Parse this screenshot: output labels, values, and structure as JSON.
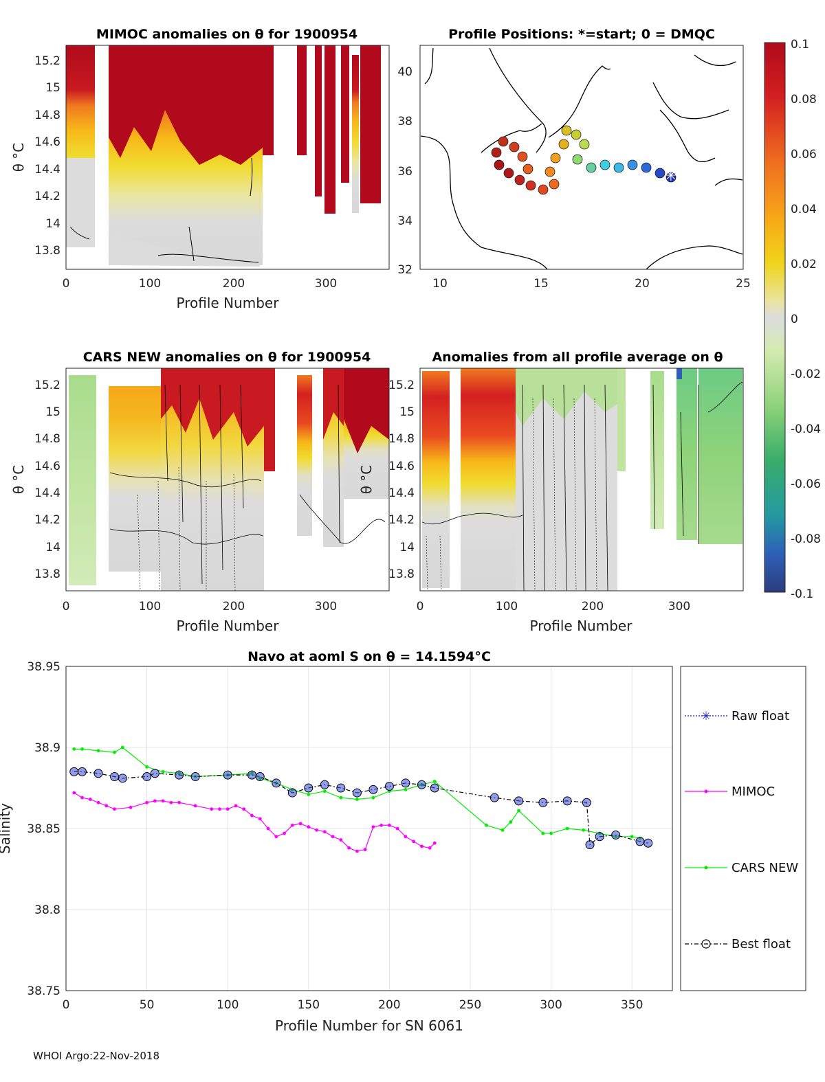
{
  "footer": "WHOI Argo:22-Nov-2018",
  "panels": {
    "mimoc": {
      "title": "MIMOC anomalies on θ  for 1900954",
      "ylabel": "θ °C",
      "xlabel": "Profile Number",
      "xticks": [
        "0",
        "100",
        "200",
        "300"
      ],
      "yticks": [
        "13.8",
        "14",
        "14.2",
        "14.4",
        "14.6",
        "14.8",
        "15",
        "15.2"
      ]
    },
    "positions": {
      "title": "Profile Positions: *=start; 0 = DMQC",
      "xticks": [
        "10",
        "15",
        "20",
        "25"
      ],
      "yticks": [
        "32",
        "34",
        "36",
        "38",
        "40"
      ]
    },
    "cars": {
      "title": "CARS NEW anomalies on θ for 1900954",
      "ylabel": "θ °C",
      "xlabel": "Profile Number",
      "xticks": [
        "0",
        "100",
        "200",
        "300"
      ],
      "yticks": [
        "13.8",
        "14",
        "14.2",
        "14.4",
        "14.6",
        "14.8",
        "15",
        "15.2"
      ]
    },
    "average": {
      "title": "Anomalies from all profile average on θ",
      "ylabel": "θ °C",
      "xlabel": "Profile Number",
      "xticks": [
        "0",
        "100",
        "200",
        "300"
      ],
      "yticks": [
        "13.8",
        "14",
        "14.2",
        "14.4",
        "14.6",
        "14.8",
        "15",
        "15.2"
      ]
    },
    "colorbar": {
      "ticks": [
        "0.1",
        "0.08",
        "0.06",
        "0.04",
        "0.02",
        "0",
        "-0.02",
        "-0.04",
        "-0.06",
        "-0.08",
        "-0.1"
      ]
    }
  },
  "chart_data": {
    "type": "line",
    "title": "Navo at aoml S on θ = 14.1594°C",
    "xlabel": "Profile Number for SN 6061",
    "ylabel": "Salinity",
    "xlim": [
      0,
      375
    ],
    "ylim": [
      38.75,
      38.95
    ],
    "xticks": [
      "0",
      "50",
      "100",
      "150",
      "200",
      "250",
      "300",
      "350"
    ],
    "yticks": [
      "38.75",
      "38.8",
      "38.85",
      "38.9",
      "38.95"
    ],
    "legend": [
      "Raw float",
      "MIMOC",
      "CARS NEW",
      "Best float"
    ],
    "legend_position": "right-outside",
    "series": [
      {
        "name": "Best float",
        "color": "#000000",
        "x": [
          5,
          10,
          20,
          30,
          35,
          50,
          55,
          70,
          80,
          100,
          115,
          120,
          130,
          140,
          150,
          160,
          170,
          180,
          190,
          200,
          210,
          220,
          228,
          265,
          280,
          295,
          310,
          322,
          324,
          330,
          340,
          355,
          360
        ],
        "y": [
          38.885,
          38.885,
          38.884,
          38.882,
          38.881,
          38.882,
          38.884,
          38.883,
          38.882,
          38.883,
          38.883,
          38.882,
          38.878,
          38.872,
          38.875,
          38.877,
          38.875,
          38.872,
          38.874,
          38.876,
          38.878,
          38.877,
          38.875,
          38.869,
          38.867,
          38.866,
          38.867,
          38.866,
          38.84,
          38.845,
          38.846,
          38.842,
          38.841
        ]
      },
      {
        "name": "MIMOC",
        "color": "#ff00ff",
        "x": [
          5,
          10,
          15,
          20,
          25,
          30,
          40,
          50,
          55,
          60,
          65,
          70,
          80,
          90,
          95,
          100,
          105,
          110,
          115,
          120,
          125,
          130,
          135,
          140,
          145,
          150,
          155,
          160,
          165,
          170,
          175,
          180,
          185,
          190,
          195,
          200,
          205,
          210,
          215,
          220,
          225,
          228
        ],
        "y": [
          38.872,
          38.869,
          38.868,
          38.866,
          38.864,
          38.862,
          38.863,
          38.866,
          38.867,
          38.867,
          38.866,
          38.866,
          38.864,
          38.862,
          38.862,
          38.862,
          38.864,
          38.862,
          38.858,
          38.856,
          38.85,
          38.845,
          38.847,
          38.852,
          38.853,
          38.851,
          38.849,
          38.848,
          38.845,
          38.843,
          38.838,
          38.836,
          38.837,
          38.851,
          38.852,
          38.852,
          38.85,
          38.845,
          38.842,
          38.839,
          38.838,
          38.841
        ]
      },
      {
        "name": "CARS NEW",
        "color": "#00ee00",
        "x": [
          5,
          10,
          20,
          30,
          35,
          50,
          60,
          70,
          80,
          100,
          115,
          120,
          130,
          140,
          150,
          160,
          170,
          180,
          190,
          200,
          210,
          220,
          228,
          260,
          270,
          275,
          280,
          295,
          300,
          310,
          320,
          330,
          340,
          350,
          355
        ],
        "y": [
          38.899,
          38.899,
          38.898,
          38.897,
          38.9,
          38.888,
          38.885,
          38.884,
          38.882,
          38.883,
          38.884,
          38.881,
          38.878,
          38.874,
          38.871,
          38.873,
          38.869,
          38.868,
          38.869,
          38.873,
          38.874,
          38.877,
          38.879,
          38.852,
          38.849,
          38.854,
          38.861,
          38.847,
          38.847,
          38.85,
          38.849,
          38.847,
          38.845,
          38.845,
          38.844
        ]
      }
    ]
  }
}
